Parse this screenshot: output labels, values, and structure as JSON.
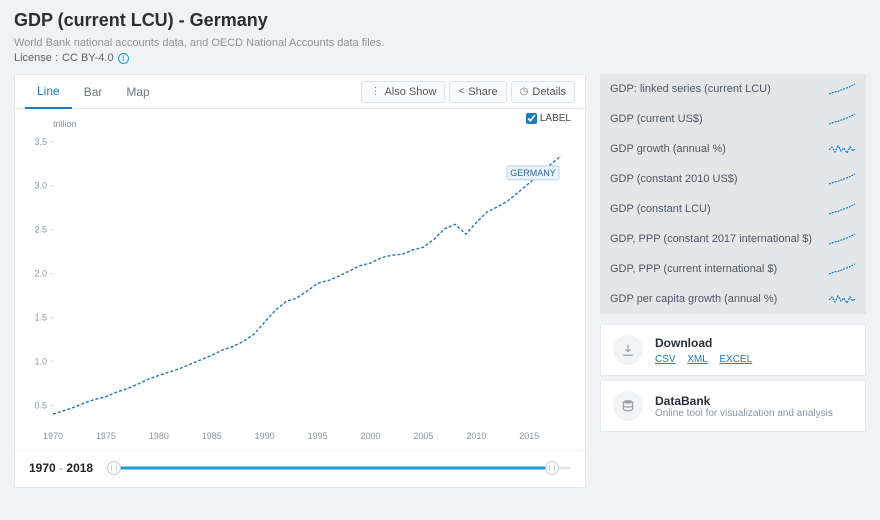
{
  "header": {
    "title": "GDP (current LCU) - Germany",
    "subtitle": "World Bank national accounts data, and OECD National Accounts data files.",
    "license_prefix": "License :",
    "license_value": "CC BY-4.0"
  },
  "tabs": {
    "line": "Line",
    "bar": "Bar",
    "map": "Map",
    "active": "line"
  },
  "buttons": {
    "also_show": "Also Show",
    "share": "Share",
    "details": "Details"
  },
  "legend": {
    "label_text": "LABEL",
    "checked": true
  },
  "chart": {
    "type": "line",
    "y_unit": "trillion",
    "y_ticks": [
      0.5,
      1.0,
      1.5,
      2.0,
      2.5,
      3.0,
      3.5
    ],
    "x_ticks": [
      1970,
      1975,
      1980,
      1985,
      1990,
      1995,
      2000,
      2005,
      2010,
      2015
    ],
    "x_domain": [
      1970,
      2018
    ],
    "y_domain": [
      0.3,
      3.6
    ],
    "series_label": "GERMANY",
    "line_color": "#1a7bbd",
    "line_dash": "3 2",
    "line_width": 1.4,
    "background_color": "#ffffff",
    "tick_color": "#8a949e",
    "tick_fontsize": 9,
    "points": [
      [
        1970,
        0.4
      ],
      [
        1971,
        0.44
      ],
      [
        1972,
        0.48
      ],
      [
        1973,
        0.53
      ],
      [
        1974,
        0.57
      ],
      [
        1975,
        0.6
      ],
      [
        1976,
        0.65
      ],
      [
        1977,
        0.69
      ],
      [
        1978,
        0.74
      ],
      [
        1979,
        0.8
      ],
      [
        1980,
        0.84
      ],
      [
        1981,
        0.88
      ],
      [
        1982,
        0.92
      ],
      [
        1983,
        0.97
      ],
      [
        1984,
        1.02
      ],
      [
        1985,
        1.07
      ],
      [
        1986,
        1.13
      ],
      [
        1987,
        1.17
      ],
      [
        1988,
        1.23
      ],
      [
        1989,
        1.31
      ],
      [
        1990,
        1.45
      ],
      [
        1991,
        1.58
      ],
      [
        1992,
        1.68
      ],
      [
        1993,
        1.72
      ],
      [
        1994,
        1.8
      ],
      [
        1995,
        1.89
      ],
      [
        1996,
        1.92
      ],
      [
        1997,
        1.97
      ],
      [
        1998,
        2.03
      ],
      [
        1999,
        2.09
      ],
      [
        2000,
        2.12
      ],
      [
        2001,
        2.18
      ],
      [
        2002,
        2.21
      ],
      [
        2003,
        2.22
      ],
      [
        2004,
        2.27
      ],
      [
        2005,
        2.3
      ],
      [
        2006,
        2.39
      ],
      [
        2007,
        2.51
      ],
      [
        2008,
        2.56
      ],
      [
        2009,
        2.45
      ],
      [
        2010,
        2.58
      ],
      [
        2011,
        2.7
      ],
      [
        2012,
        2.76
      ],
      [
        2013,
        2.83
      ],
      [
        2014,
        2.93
      ],
      [
        2015,
        3.03
      ],
      [
        2016,
        3.13
      ],
      [
        2017,
        3.24
      ],
      [
        2018,
        3.34
      ]
    ]
  },
  "range": {
    "from": "1970",
    "to": "2018",
    "handle_left_pct": 2,
    "handle_right_pct": 96
  },
  "related": [
    {
      "label": "GDP: linked series (current LCU)",
      "spark": "up"
    },
    {
      "label": "GDP (current US$)",
      "spark": "up"
    },
    {
      "label": "GDP growth (annual %)",
      "spark": "vol"
    },
    {
      "label": "GDP (constant 2010 US$)",
      "spark": "up"
    },
    {
      "label": "GDP (constant LCU)",
      "spark": "up"
    },
    {
      "label": "GDP, PPP (constant 2017 international $)",
      "spark": "up"
    },
    {
      "label": "GDP, PPP (current international $)",
      "spark": "up"
    },
    {
      "label": "GDP per capita growth (annual %)",
      "spark": "vol"
    }
  ],
  "download": {
    "title": "Download",
    "formats": {
      "csv": "CSV",
      "xml": "XML",
      "excel": "EXCEL"
    }
  },
  "databank": {
    "title": "DataBank",
    "desc": "Online tool for visualization and analysis"
  }
}
